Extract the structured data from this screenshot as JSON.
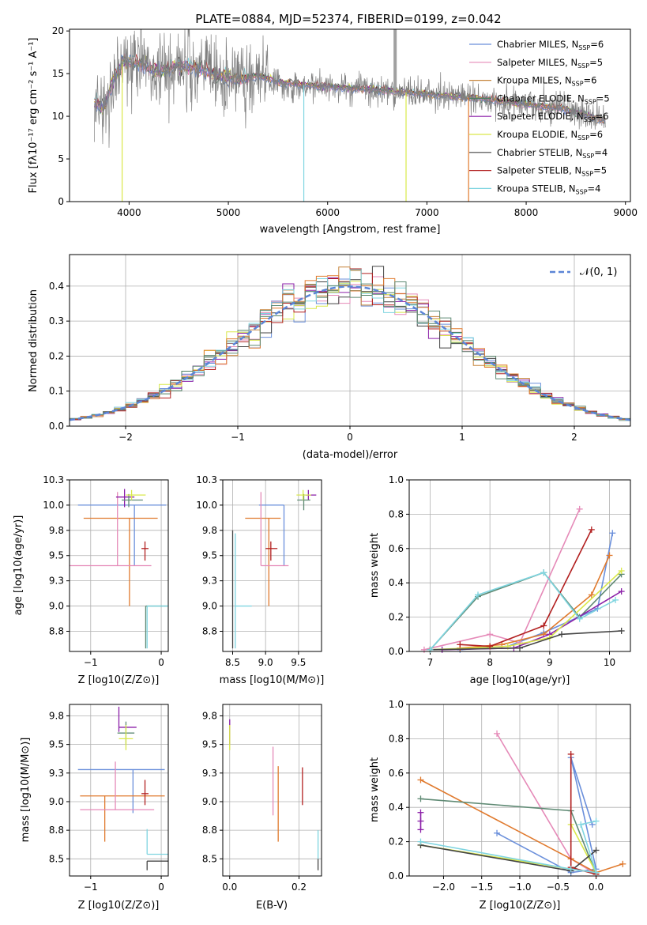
{
  "figure_title": "PLATE=0884, MJD=52374, FIBERID=0199, z=0.042",
  "legend_models": [
    {
      "name": "Chabrier MILES",
      "n": "6",
      "color": "#6a8fdb"
    },
    {
      "name": "Salpeter MILES",
      "n": "5",
      "color": "#e58ab8"
    },
    {
      "name": "Kroupa MILES",
      "n": "6",
      "color": "#c5843a"
    },
    {
      "name": "Chabrier ELODIE",
      "n": "5",
      "color": "#4f7f63"
    },
    {
      "name": "Salpeter ELODIE",
      "n": "6",
      "color": "#8b1fa8"
    },
    {
      "name": "Kroupa ELODIE",
      "n": "6",
      "color": "#d9e84a"
    },
    {
      "name": "Chabrier STELIB",
      "n": "4",
      "color": "#444444"
    },
    {
      "name": "Salpeter STELIB",
      "n": "5",
      "color": "#b21f1f"
    },
    {
      "name": "Kroupa STELIB",
      "n": "4",
      "color": "#7fd5e0"
    }
  ],
  "palette_extra": {
    "orange": "#e07a2e",
    "teal_grey": "#5f8a74",
    "spectrum_grey": "#808080"
  },
  "chart_data": [
    {
      "id": "spectrum",
      "type": "line",
      "title": "PLATE=0884, MJD=52374, FIBERID=0199, z=0.042",
      "xlabel": "wavelength [Angstrom, rest frame]",
      "ylabel": "Flux [fλ10⁻¹⁷ erg cm⁻² s⁻¹ A⁻¹]",
      "xlim": [
        3400,
        9050
      ],
      "ylim": [
        0,
        20.2
      ],
      "xticks": [
        4000,
        5000,
        6000,
        7000,
        8000,
        9000
      ],
      "yticks": [
        0,
        5,
        10,
        15,
        20
      ],
      "grid": false,
      "legend_position": "top-right",
      "continuum": [
        [
          3650,
          11.5
        ],
        [
          3750,
          11.0
        ],
        [
          3850,
          14.5
        ],
        [
          3950,
          16.5
        ],
        [
          4100,
          16.2
        ],
        [
          4300,
          15.2
        ],
        [
          4500,
          16.0
        ],
        [
          4700,
          15.5
        ],
        [
          4900,
          14.8
        ],
        [
          5100,
          14.2
        ],
        [
          5300,
          14.8
        ],
        [
          5500,
          14.0
        ],
        [
          5800,
          13.6
        ],
        [
          6100,
          13.4
        ],
        [
          6400,
          13.2
        ],
        [
          6800,
          12.8
        ],
        [
          7200,
          12.4
        ],
        [
          7600,
          12.0
        ],
        [
          8000,
          11.4
        ],
        [
          8400,
          10.8
        ],
        [
          8800,
          9.5
        ]
      ]
    },
    {
      "id": "residual_hist",
      "type": "line",
      "xlabel": "(data-model)/error",
      "ylabel": "Normed distribution",
      "xlim": [
        -2.5,
        2.5
      ],
      "ylim": [
        0,
        0.49
      ],
      "xticks": [
        -2,
        -1,
        0,
        1,
        2
      ],
      "yticks": [
        0.0,
        0.1,
        0.2,
        0.3,
        0.4
      ],
      "grid": true,
      "legend_position": "top-right",
      "reference_curve": "𝒩(0, 1)"
    },
    {
      "id": "age_vs_Z",
      "type": "scatter",
      "xlabel": "Z [log10(Z/Z⊙)]",
      "ylabel": "age  [log10(age/yr)]",
      "xlim": [
        -1.3,
        0.1
      ],
      "ylim": [
        8.55,
        10.25
      ],
      "xticks": [
        -1,
        0
      ],
      "yticks": [
        8.75,
        9.0,
        9.25,
        9.5,
        9.75,
        10.0,
        10.25
      ],
      "grid": true,
      "errorbars": [
        {
          "x": -0.38,
          "xerr": [
            0.8,
            0.45
          ],
          "y": 10.0,
          "yerr": [
            0.6,
            0.0
          ],
          "color": "#6a8fdb"
        },
        {
          "x": -0.45,
          "xerr": [
            0.65,
            0.4
          ],
          "y": 9.87,
          "yerr": [
            0.87,
            0.0
          ],
          "color": "#e07a2e"
        },
        {
          "x": -0.62,
          "xerr": [
            0.7,
            0.48
          ],
          "y": 9.4,
          "yerr": [
            0.0,
            0.73
          ],
          "color": "#e58ab8"
        },
        {
          "x": -0.52,
          "xerr": [
            0.12,
            0.14
          ],
          "y": 10.08,
          "yerr": [
            0.1,
            0.08
          ],
          "color": "#8b1fa8"
        },
        {
          "x": -0.46,
          "xerr": [
            0.1,
            0.2
          ],
          "y": 10.05,
          "yerr": [
            0.07,
            0.06
          ],
          "color": "#5f8a74"
        },
        {
          "x": -0.42,
          "xerr": [
            0.08,
            0.2
          ],
          "y": 10.1,
          "yerr": [
            0.05,
            0.05
          ],
          "color": "#d9e84a"
        },
        {
          "x": -0.23,
          "xerr": [
            0.05,
            0.05
          ],
          "y": 9.57,
          "yerr": [
            0.12,
            0.07
          ],
          "color": "#b21f1f"
        },
        {
          "x": -0.22,
          "xerr": [
            0.0,
            0.3
          ],
          "y": 9.0,
          "yerr": [
            0.42,
            0.0
          ],
          "color": "#5f8a74"
        },
        {
          "x": -0.2,
          "xerr": [
            0.0,
            0.3
          ],
          "y": 9.0,
          "yerr": [
            0.42,
            0.0
          ],
          "color": "#7fd5e0"
        }
      ]
    },
    {
      "id": "age_vs_mass",
      "type": "scatter",
      "xlabel": "mass [log10(M/M⊙)]",
      "ylabel": "",
      "xlim": [
        8.35,
        9.85
      ],
      "ylim": [
        8.55,
        10.25
      ],
      "xticks": [
        8.5,
        9.0,
        9.5
      ],
      "yticks": [
        8.75,
        9.0,
        9.25,
        9.5,
        9.75,
        10.0,
        10.25
      ],
      "grid": true,
      "errorbars": [
        {
          "x": 9.28,
          "xerr": [
            0.38,
            0.0
          ],
          "y": 10.0,
          "yerr": [
            0.6,
            0.0
          ],
          "color": "#6a8fdb"
        },
        {
          "x": 9.05,
          "xerr": [
            0.36,
            0.18
          ],
          "y": 9.87,
          "yerr": [
            0.87,
            0.0
          ],
          "color": "#e07a2e"
        },
        {
          "x": 8.93,
          "xerr": [
            0.0,
            0.42
          ],
          "y": 9.4,
          "yerr": [
            0.0,
            0.73
          ],
          "color": "#e58ab8"
        },
        {
          "x": 9.65,
          "xerr": [
            0.04,
            0.12
          ],
          "y": 10.1,
          "yerr": [
            0.05,
            0.05
          ],
          "color": "#8b1fa8"
        },
        {
          "x": 9.58,
          "xerr": [
            0.1,
            0.1
          ],
          "y": 10.05,
          "yerr": [
            0.1,
            0.06
          ],
          "color": "#5f8a74"
        },
        {
          "x": 9.57,
          "xerr": [
            0.1,
            0.12
          ],
          "y": 10.1,
          "yerr": [
            0.05,
            0.05
          ],
          "color": "#d9e84a"
        },
        {
          "x": 9.08,
          "xerr": [
            0.08,
            0.1
          ],
          "y": 9.57,
          "yerr": [
            0.12,
            0.07
          ],
          "color": "#b21f1f"
        },
        {
          "x": 8.5,
          "xerr": [
            0.0,
            0.0
          ],
          "y": 9.0,
          "yerr": [
            0.42,
            0.75
          ],
          "color": "#444444"
        },
        {
          "x": 8.54,
          "xerr": [
            0.0,
            0.25
          ],
          "y": 9.0,
          "yerr": [
            0.42,
            0.72
          ],
          "color": "#7fd5e0"
        }
      ]
    },
    {
      "id": "massweight_vs_age",
      "type": "line",
      "xlabel": "age  [log10(age/yr)]",
      "ylabel": "mass weight",
      "xlim": [
        6.65,
        10.35
      ],
      "ylim": [
        0.0,
        1.0
      ],
      "xticks": [
        7,
        8,
        9,
        10
      ],
      "yticks": [
        0.0,
        0.2,
        0.4,
        0.6,
        0.8,
        1.0
      ],
      "grid": true,
      "series": [
        {
          "color": "#6a8fdb",
          "x": [
            7.5,
            8.3,
            8.9,
            9.8,
            10.05
          ],
          "y": [
            0.01,
            0.03,
            0.11,
            0.25,
            0.69
          ]
        },
        {
          "color": "#e58ab8",
          "x": [
            6.9,
            8.0,
            8.5,
            9.5
          ],
          "y": [
            0.01,
            0.1,
            0.05,
            0.83
          ]
        },
        {
          "color": "#e07a2e",
          "x": [
            7.5,
            8.2,
            8.9,
            9.7,
            10.0
          ],
          "y": [
            0.02,
            0.04,
            0.1,
            0.33,
            0.56
          ]
        },
        {
          "color": "#5f8a74",
          "x": [
            7.0,
            7.8,
            8.9,
            9.5,
            10.2
          ],
          "y": [
            0.01,
            0.32,
            0.46,
            0.2,
            0.45
          ]
        },
        {
          "color": "#8b1fa8",
          "x": [
            7.2,
            8.4,
            9.0,
            10.2
          ],
          "y": [
            0.01,
            0.02,
            0.1,
            0.35
          ]
        },
        {
          "color": "#d9e84a",
          "x": [
            7.0,
            8.3,
            9.0,
            10.2
          ],
          "y": [
            0.01,
            0.03,
            0.08,
            0.47
          ]
        },
        {
          "color": "#444444",
          "x": [
            7.0,
            8.5,
            9.2,
            10.2
          ],
          "y": [
            0.01,
            0.02,
            0.1,
            0.12
          ]
        },
        {
          "color": "#b21f1f",
          "x": [
            7.5,
            8.0,
            8.9,
            9.7
          ],
          "y": [
            0.04,
            0.03,
            0.15,
            0.71
          ]
        },
        {
          "color": "#7fd5e0",
          "x": [
            7.0,
            7.8,
            8.9,
            9.5,
            10.1
          ],
          "y": [
            0.01,
            0.33,
            0.46,
            0.19,
            0.3
          ]
        }
      ]
    },
    {
      "id": "mass_vs_Z",
      "type": "scatter",
      "xlabel": "Z [log10(Z/Z⊙)]",
      "ylabel": "mass [log10(M/M⊙)]",
      "xlim": [
        -1.3,
        0.1
      ],
      "ylim": [
        8.35,
        9.85
      ],
      "xticks": [
        -1,
        0
      ],
      "yticks": [
        8.5,
        8.75,
        9.0,
        9.25,
        9.5,
        9.75
      ],
      "grid": true,
      "errorbars": [
        {
          "x": -0.4,
          "xerr": [
            0.78,
            0.45
          ],
          "y": 9.28,
          "yerr": [
            0.38,
            0.0
          ],
          "color": "#6a8fdb"
        },
        {
          "x": -0.8,
          "xerr": [
            0.35,
            0.85
          ],
          "y": 9.05,
          "yerr": [
            0.4,
            0.0
          ],
          "color": "#e07a2e"
        },
        {
          "x": -0.65,
          "xerr": [
            0.5,
            0.55
          ],
          "y": 8.93,
          "yerr": [
            0.0,
            0.42
          ],
          "color": "#e58ab8"
        },
        {
          "x": -0.6,
          "xerr": [
            0.0,
            0.25
          ],
          "y": 9.65,
          "yerr": [
            0.04,
            0.18
          ],
          "color": "#8b1fa8"
        },
        {
          "x": -0.5,
          "xerr": [
            0.12,
            0.12
          ],
          "y": 9.6,
          "yerr": [
            0.1,
            0.1
          ],
          "color": "#5f8a74"
        },
        {
          "x": -0.5,
          "xerr": [
            0.1,
            0.1
          ],
          "y": 9.55,
          "yerr": [
            0.1,
            0.12
          ],
          "color": "#d9e84a"
        },
        {
          "x": -0.23,
          "xerr": [
            0.05,
            0.05
          ],
          "y": 9.07,
          "yerr": [
            0.1,
            0.12
          ],
          "color": "#b21f1f"
        },
        {
          "x": -0.2,
          "xerr": [
            0.0,
            0.3
          ],
          "y": 8.48,
          "yerr": [
            0.08,
            0.0
          ],
          "color": "#444444"
        },
        {
          "x": -0.2,
          "xerr": [
            0.0,
            0.3
          ],
          "y": 8.54,
          "yerr": [
            0.0,
            0.22
          ],
          "color": "#7fd5e0"
        }
      ]
    },
    {
      "id": "mass_vs_EBV",
      "type": "scatter",
      "xlabel": "E(B-V)",
      "ylabel": "",
      "xlim": [
        -0.02,
        0.265
      ],
      "ylim": [
        8.35,
        9.85
      ],
      "xticks": [
        0.0,
        0.2
      ],
      "yticks": [
        8.5,
        8.75,
        9.0,
        9.25,
        9.5,
        9.75
      ],
      "grid": true,
      "errorbars": [
        {
          "x": 0.0,
          "xerr": [
            0.0,
            0.0
          ],
          "y": 9.62,
          "yerr": [
            0.12,
            0.1
          ],
          "color": "#8b1fa8"
        },
        {
          "x": 0.0,
          "xerr": [
            0.0,
            0.0
          ],
          "y": 9.55,
          "yerr": [
            0.1,
            0.12
          ],
          "color": "#d9e84a"
        },
        {
          "x": 0.125,
          "xerr": [
            0.0,
            0.0
          ],
          "y": 9.18,
          "yerr": [
            0.3,
            0.3
          ],
          "color": "#e58ab8"
        },
        {
          "x": 0.14,
          "xerr": [
            0.0,
            0.0
          ],
          "y": 8.98,
          "yerr": [
            0.33,
            0.33
          ],
          "color": "#e07a2e"
        },
        {
          "x": 0.21,
          "xerr": [
            0.0,
            0.0
          ],
          "y": 9.13,
          "yerr": [
            0.16,
            0.17
          ],
          "color": "#b21f1f"
        },
        {
          "x": 0.255,
          "xerr": [
            0.0,
            0.0
          ],
          "y": 8.5,
          "yerr": [
            0.1,
            0.0
          ],
          "color": "#444444"
        },
        {
          "x": 0.255,
          "xerr": [
            0.0,
            0.0
          ],
          "y": 8.6,
          "yerr": [
            0.1,
            0.15
          ],
          "color": "#7fd5e0"
        }
      ]
    },
    {
      "id": "massweight_vs_Z",
      "type": "line",
      "xlabel": "Z [log10(Z/Z⊙)]",
      "ylabel": "mass weight",
      "xlim": [
        -2.45,
        0.45
      ],
      "ylim": [
        0.0,
        1.0
      ],
      "xticks": [
        -2.0,
        -1.5,
        -1.0,
        -0.5,
        0.0
      ],
      "yticks": [
        0.0,
        0.2,
        0.4,
        0.6,
        0.8,
        1.0
      ],
      "grid": true,
      "series": [
        {
          "color": "#6a8fdb",
          "x": [
            -1.3,
            -0.33,
            0.0,
            -0.33,
            -0.05
          ],
          "y": [
            0.25,
            0.02,
            0.04,
            0.69,
            0.3
          ]
        },
        {
          "color": "#e58ab8",
          "x": [
            -1.3,
            -0.33,
            0.0
          ],
          "y": [
            0.83,
            0.1,
            0.01
          ]
        },
        {
          "color": "#e07a2e",
          "x": [
            -2.3,
            -0.33,
            0.0,
            0.35
          ],
          "y": [
            0.56,
            0.1,
            0.02,
            0.07
          ]
        },
        {
          "color": "#5f8a74",
          "x": [
            -2.3,
            -0.33,
            0.0
          ],
          "y": [
            0.45,
            0.38,
            0.01
          ]
        },
        {
          "color": "#8b1fa8",
          "x": [
            -2.3,
            -2.3,
            -2.3
          ],
          "y": [
            0.37,
            0.32,
            0.27
          ]
        },
        {
          "color": "#d9e84a",
          "x": [
            -2.3,
            -0.33,
            0.0,
            -0.33
          ],
          "y": [
            0.18,
            0.04,
            0.02,
            0.3
          ]
        },
        {
          "color": "#444444",
          "x": [
            -2.3,
            -0.33,
            0.0
          ],
          "y": [
            0.18,
            0.03,
            0.15
          ]
        },
        {
          "color": "#b21f1f",
          "x": [
            -0.33,
            -0.33,
            0.0
          ],
          "y": [
            0.71,
            0.05,
            0.01
          ]
        },
        {
          "color": "#7fd5e0",
          "x": [
            -2.3,
            -0.33,
            0.0,
            -0.2,
            0.0
          ],
          "y": [
            0.2,
            0.04,
            0.02,
            0.3,
            0.32
          ]
        }
      ]
    }
  ]
}
